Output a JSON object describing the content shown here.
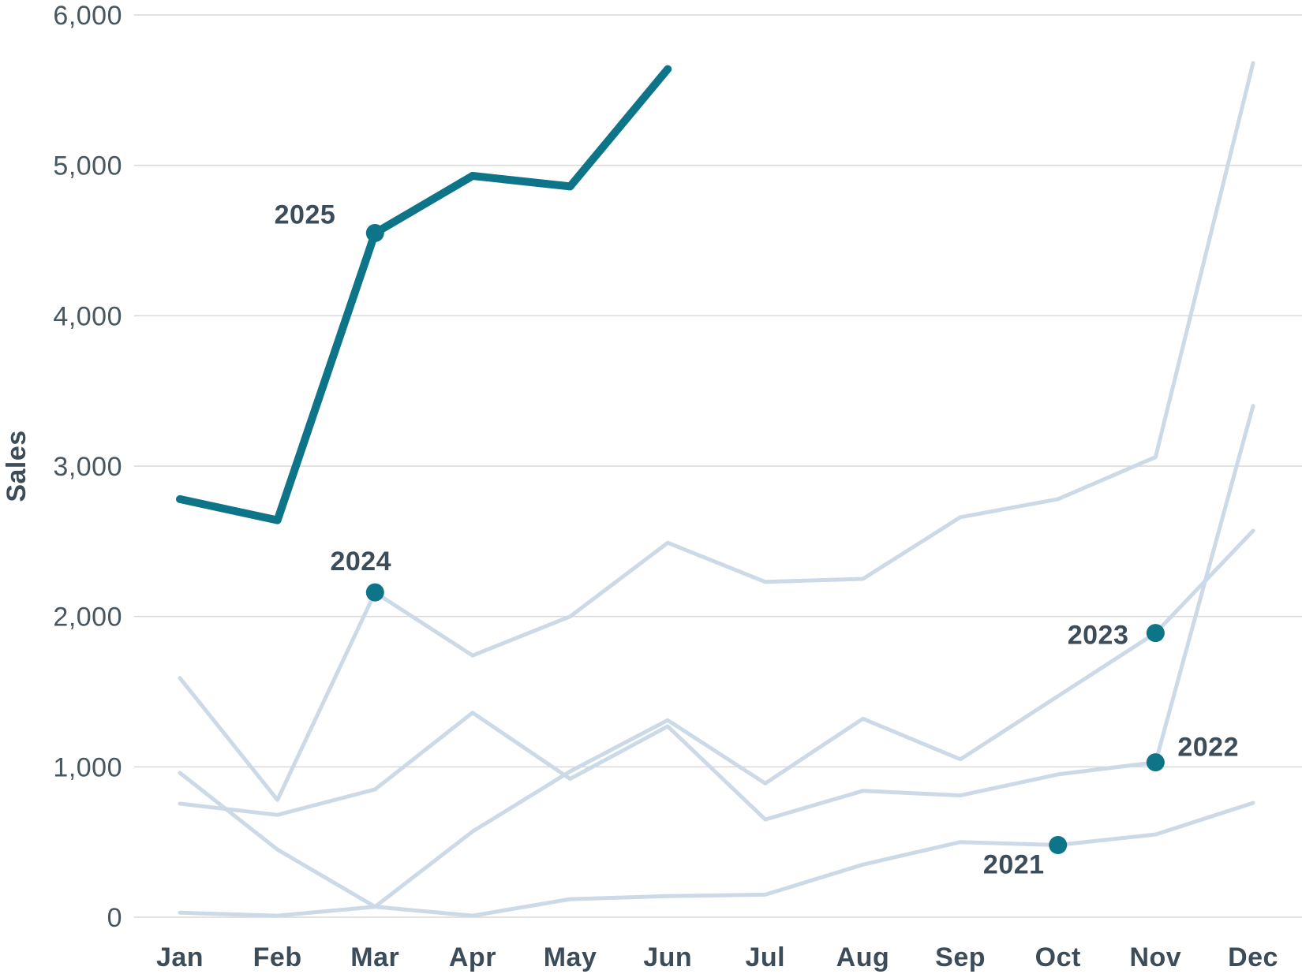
{
  "figure": {
    "y_axis_label": "Sales"
  },
  "colors": {
    "background": "#FFFFFF",
    "accent_teal": "#0E7488",
    "series_light": "#CBDAE6",
    "gridline": "#D8D8D8",
    "text_dark": "#3D4C59",
    "tick_text": "#47565F"
  },
  "chart_data": {
    "type": "line",
    "title": "",
    "xlabel": "",
    "ylabel": "Sales",
    "categories": [
      "Jan",
      "Feb",
      "Mar",
      "Apr",
      "May",
      "Jun",
      "Jul",
      "Aug",
      "Sep",
      "Oct",
      "Nov",
      "Dec"
    ],
    "ylim": [
      0,
      6000
    ],
    "y_ticks": [
      {
        "value": 0,
        "label": "0"
      },
      {
        "value": 1000,
        "label": "1,000"
      },
      {
        "value": 2000,
        "label": "2,000"
      },
      {
        "value": 3000,
        "label": "3,000"
      },
      {
        "value": 4000,
        "label": "4,000"
      },
      {
        "value": 5000,
        "label": "5,000"
      },
      {
        "value": 6000,
        "label": "6,000"
      }
    ],
    "grid": "horizontal",
    "legend": "inline-series-labels-at-markers",
    "series": [
      {
        "name": "2021",
        "emphasis": false,
        "values": [
          30,
          10,
          70,
          10,
          120,
          140,
          150,
          350,
          500,
          480,
          550,
          760
        ],
        "marker": {
          "category": "Oct",
          "index": 9,
          "value": 480
        },
        "label_position": "below-left"
      },
      {
        "name": "2022",
        "emphasis": false,
        "values": [
          755,
          680,
          850,
          1360,
          920,
          1270,
          650,
          840,
          810,
          950,
          1030,
          3400
        ],
        "marker": {
          "category": "Nov",
          "index": 10,
          "value": 1030
        },
        "label_position": "right"
      },
      {
        "name": "2023",
        "emphasis": false,
        "values": [
          960,
          450,
          70,
          570,
          970,
          1310,
          890,
          1320,
          1050,
          1470,
          1890,
          2570
        ],
        "marker": {
          "category": "Nov",
          "index": 10,
          "value": 1890
        },
        "label_position": "left"
      },
      {
        "name": "2024",
        "emphasis": false,
        "values": [
          1590,
          780,
          2160,
          1740,
          2000,
          2490,
          2230,
          2250,
          2660,
          2780,
          3060,
          5680
        ],
        "marker": {
          "category": "Mar",
          "index": 2,
          "value": 2160
        },
        "label_position": "above"
      },
      {
        "name": "2025",
        "emphasis": true,
        "values": [
          2780,
          2640,
          4550,
          4930,
          4860,
          5640
        ],
        "marker": {
          "category": "Mar",
          "index": 2,
          "value": 4550
        },
        "label_position": "left"
      }
    ]
  }
}
